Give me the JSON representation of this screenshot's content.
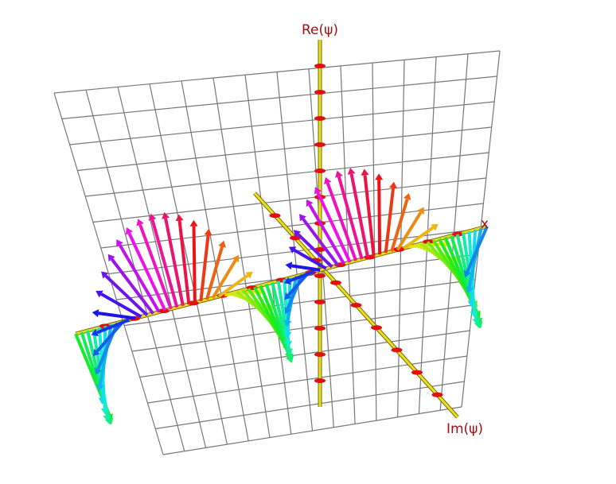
{
  "axes": {
    "re_label": "Re(ψ)",
    "im_label": "Im(ψ)",
    "x_label": "x"
  }
}
